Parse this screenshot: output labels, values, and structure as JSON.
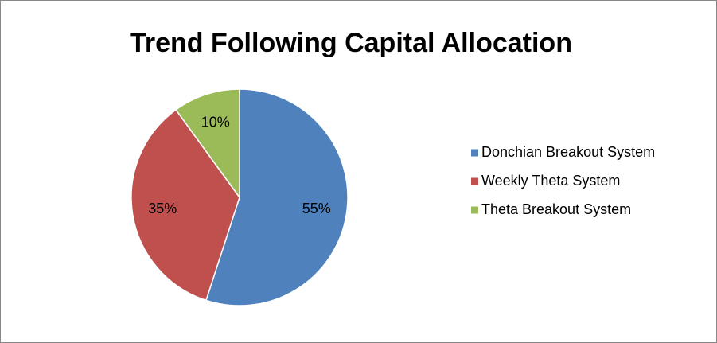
{
  "chart_data": {
    "type": "pie",
    "title": "Trend Following Capital Allocation",
    "categories": [
      "Donchian Breakout System",
      "Weekly Theta System",
      "Theta Breakout System"
    ],
    "values": [
      55,
      35,
      10
    ],
    "value_labels": [
      "55%",
      "35%",
      "10%"
    ],
    "colors": [
      "#4f81bd",
      "#c0504d",
      "#9bbb59"
    ],
    "legend": "right"
  }
}
